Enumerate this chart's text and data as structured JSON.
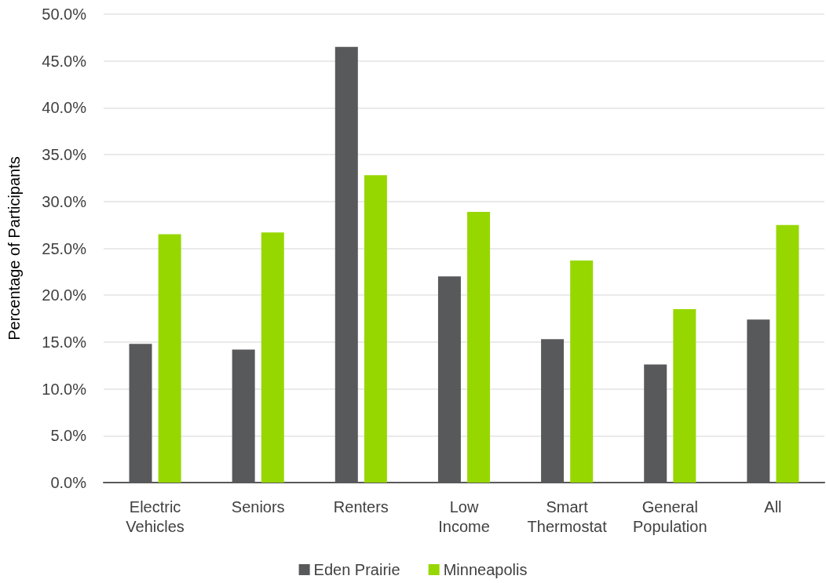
{
  "chart_data": {
    "type": "bar",
    "ylabel": "Percentage of Participants",
    "categories": [
      "Electric Vehicles",
      "Seniors",
      "Renters",
      "Low Income",
      "Smart Thermostat",
      "General Population",
      "All"
    ],
    "series": [
      {
        "name": "Eden Prairie",
        "color": "#58595b",
        "values": [
          14.8,
          14.2,
          46.5,
          22.0,
          15.3,
          12.6,
          17.4
        ]
      },
      {
        "name": "Minneapolis",
        "color": "#97d700",
        "values": [
          26.5,
          26.7,
          32.8,
          28.9,
          23.7,
          18.5,
          27.5
        ]
      }
    ],
    "ylim": [
      0,
      50
    ],
    "yticks": [
      {
        "value": 0,
        "label": "0.0%"
      },
      {
        "value": 5,
        "label": "5.0%"
      },
      {
        "value": 10,
        "label": "10.0%"
      },
      {
        "value": 15,
        "label": "15.0%"
      },
      {
        "value": 20,
        "label": "20.0%"
      },
      {
        "value": 25,
        "label": "25.0%"
      },
      {
        "value": 30,
        "label": "30.0%"
      },
      {
        "value": 35,
        "label": "35.0%"
      },
      {
        "value": 40,
        "label": "40.0%"
      },
      {
        "value": 45,
        "label": "45.0%"
      },
      {
        "value": 50,
        "label": "50.0%"
      }
    ],
    "grid": "y",
    "legend": "bottom"
  }
}
